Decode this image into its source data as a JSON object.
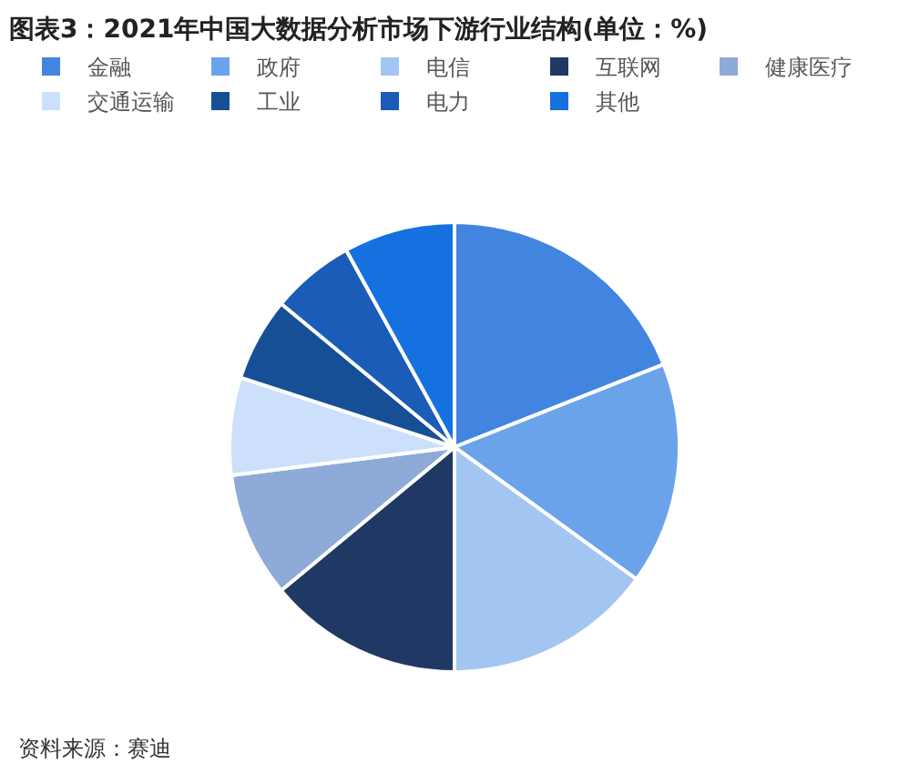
{
  "chart_data": {
    "type": "pie",
    "title": "图表3：2021年中国大数据分析市场下游行业结构(单位：%)",
    "categories": [
      "金融",
      "政府",
      "电信",
      "互联网",
      "健康医疗",
      "交通运输",
      "工业",
      "电力",
      "其他"
    ],
    "values": [
      19,
      16,
      15,
      14,
      9,
      7,
      6,
      6,
      8
    ],
    "colors": [
      "#4285e0",
      "#6ba3ea",
      "#a3c5f2",
      "#203864",
      "#8eaad8",
      "#cce0fb",
      "#174f96",
      "#1a5cb8",
      "#1570e0"
    ],
    "legend": "top",
    "annotations": [
      "资料来源：赛迪"
    ]
  }
}
